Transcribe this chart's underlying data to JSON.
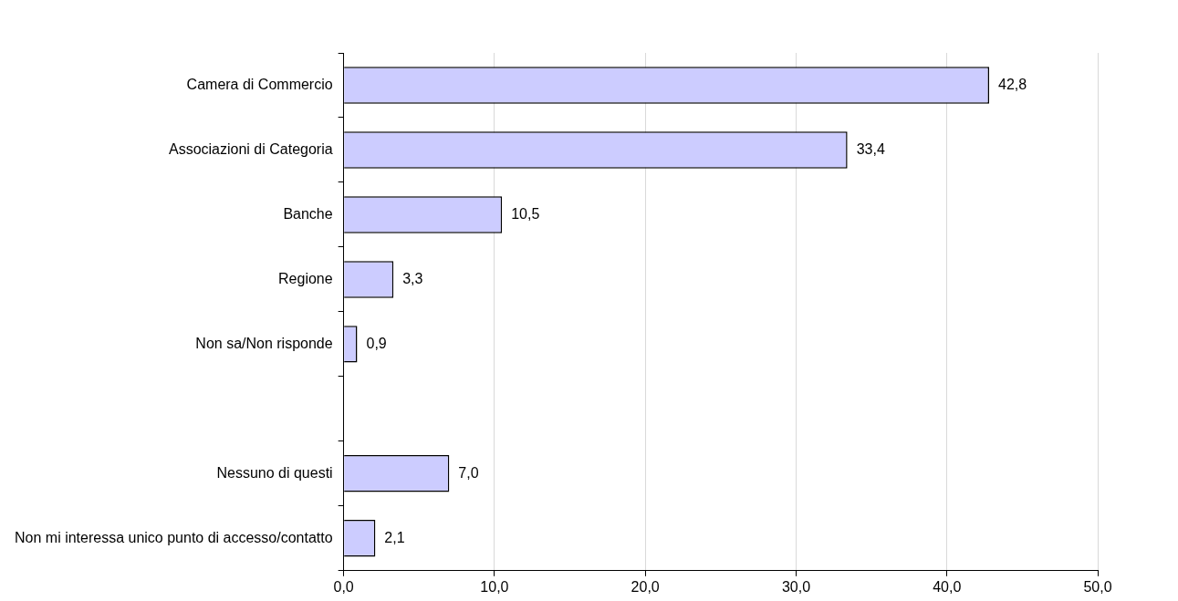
{
  "chart_data": {
    "type": "bar",
    "orientation": "horizontal",
    "categories": [
      "Camera di Commercio",
      "Associazioni di Categoria",
      "Banche",
      "Regione",
      "Non sa/Non risponde",
      null,
      "Nessuno di questi",
      "Non mi interessa unico punto di accesso/contatto"
    ],
    "values": [
      42.8,
      33.4,
      10.5,
      3.3,
      0.9,
      null,
      7.0,
      2.1
    ],
    "value_labels": [
      "42,8",
      "33,4",
      "10,5",
      "3,3",
      "0,9",
      null,
      "7,0",
      "2,1"
    ],
    "color": "#ccccff",
    "xlim": [
      0,
      50
    ],
    "xticks": [
      {
        "value": 0,
        "label": "0,0"
      },
      {
        "value": 10,
        "label": "10,0"
      },
      {
        "value": 20,
        "label": "20,0"
      },
      {
        "value": 30,
        "label": "30,0"
      },
      {
        "value": 40,
        "label": "40,0"
      },
      {
        "value": 50,
        "label": "50,0"
      }
    ],
    "grid": "x",
    "legend": false
  }
}
